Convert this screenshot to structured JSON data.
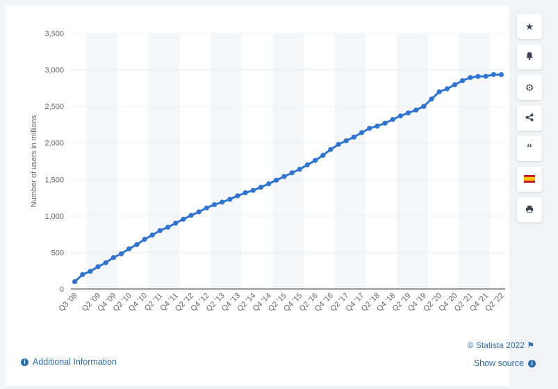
{
  "chart_data": {
    "type": "line",
    "ylabel": "Number of users in millions",
    "ylim": [
      0,
      3500
    ],
    "yticks": [
      0,
      500,
      1000,
      1500,
      2000,
      2500,
      3000,
      3500
    ],
    "ytick_labels": [
      "0",
      "500",
      "1,000",
      "1,500",
      "2,000",
      "2,500",
      "3,000",
      "3,500"
    ],
    "grid": true,
    "x": [
      "Q3 '08",
      "Q4 '08",
      "Q1 '09",
      "Q2 '09",
      "Q3 '09",
      "Q4 '09",
      "Q1 '10",
      "Q2 '10",
      "Q3 '10",
      "Q4 '10",
      "Q1 '11",
      "Q2 '11",
      "Q3 '11",
      "Q4 '11",
      "Q1 '12",
      "Q2 '12",
      "Q3 '12",
      "Q4 '12",
      "Q1 '13",
      "Q2 '13",
      "Q3 '13",
      "Q4 '13",
      "Q1 '14",
      "Q2 '14",
      "Q3 '14",
      "Q4 '14",
      "Q1 '15",
      "Q2 '15",
      "Q3 '15",
      "Q4 '15",
      "Q1 '16",
      "Q2 '16",
      "Q3 '16",
      "Q4 '16",
      "Q1 '17",
      "Q2 '17",
      "Q3 '17",
      "Q4 '17",
      "Q1 '18",
      "Q2 '18",
      "Q3 '18",
      "Q4 '18",
      "Q1 '19",
      "Q2 '19",
      "Q3 '19",
      "Q4 '19",
      "Q1 '20",
      "Q2 '20",
      "Q3 '20",
      "Q4 '20",
      "Q1 '21",
      "Q2 '21",
      "Q3 '21",
      "Q4 '21",
      "Q1 '22",
      "Q2 '22"
    ],
    "xtick_labels": [
      "Q3 '08",
      "Q2 '09",
      "Q4 '09",
      "Q2 '10",
      "Q4 '10",
      "Q2 '11",
      "Q4 '11",
      "Q2 '12",
      "Q4 '12",
      "Q2 '13",
      "Q4 '13",
      "Q2 '14",
      "Q4 '14",
      "Q2 '15",
      "Q4 '15",
      "Q2 '16",
      "Q4 '16",
      "Q2 '17",
      "Q4 '17",
      "Q2 '18",
      "Q4 '18",
      "Q2 '19",
      "Q4 '19",
      "Q2 '20",
      "Q4 '20",
      "Q2 '21",
      "Q4 '21",
      "Q2 '22"
    ],
    "series": [
      {
        "values": [
          100,
          197,
          242,
          305,
          360,
          431,
          482,
          550,
          608,
          680,
          739,
          800,
          845,
          901,
          955,
          1007,
          1056,
          1110,
          1155,
          1189,
          1228,
          1276,
          1317,
          1350,
          1393,
          1440,
          1490,
          1540,
          1590,
          1640,
          1700,
          1760,
          1830,
          1910,
          1980,
          2030,
          2080,
          2140,
          2200,
          2230,
          2270,
          2320,
          2370,
          2410,
          2450,
          2500,
          2600,
          2700,
          2740,
          2797,
          2853,
          2895,
          2910,
          2912,
          2936,
          2934
        ],
        "color": "#2f74d0"
      }
    ]
  },
  "toolbar": {
    "star_icon": "star-icon",
    "bell_icon": "bell-icon",
    "gear_icon": "gear-icon",
    "share_icon": "share-icon",
    "quote_icon": "quote-icon",
    "flag_icon": "flag-icon",
    "print_icon": "print-icon"
  },
  "footer": {
    "credit": "© Statista 2022",
    "additional_info": "Additional Information",
    "show_source": "Show source"
  }
}
